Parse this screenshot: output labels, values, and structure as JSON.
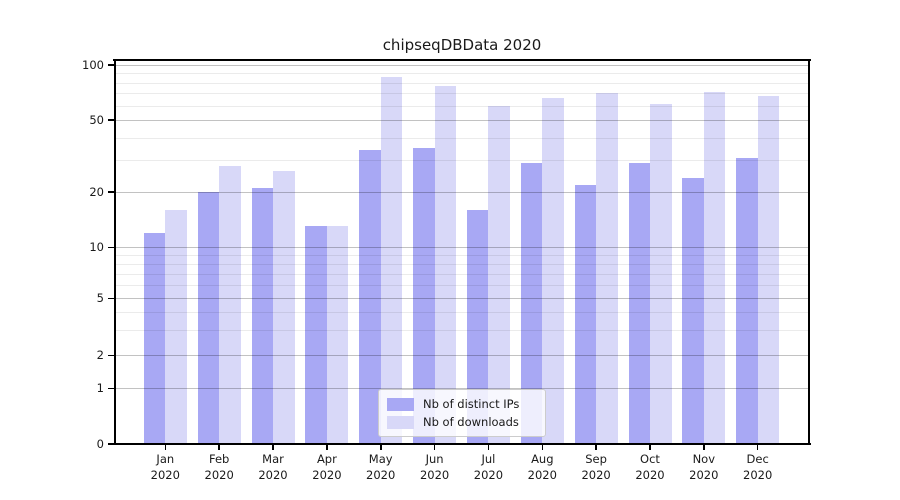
{
  "chart_data": {
    "type": "bar",
    "title": "chipseqDBData 2020",
    "categories": [
      "Jan",
      "Feb",
      "Mar",
      "Apr",
      "May",
      "Jun",
      "Jul",
      "Aug",
      "Sep",
      "Oct",
      "Nov",
      "Dec"
    ],
    "x_tick_sublabel": "2020",
    "series": [
      {
        "name": "Nb of distinct IPs",
        "color": "#a8a8f4",
        "values": [
          12,
          20,
          21,
          13,
          34,
          35,
          16,
          29,
          22,
          29,
          24,
          31
        ]
      },
      {
        "name": "Nb of downloads",
        "color": "#d8d8f8",
        "values": [
          16,
          28,
          26,
          13,
          86,
          77,
          60,
          66,
          70,
          61,
          71,
          68
        ]
      }
    ],
    "y_axis": {
      "ticks": [
        0,
        1,
        2,
        5,
        10,
        20,
        50,
        100
      ],
      "minor_ticks": [
        3,
        4,
        6,
        7,
        8,
        9,
        30,
        40,
        60,
        70,
        80,
        90
      ],
      "scale": "log (1-2-5 ticks), linear below 1",
      "range": [
        0,
        100
      ]
    },
    "legend": {
      "position": "lower center",
      "entries": [
        "Nb of distinct IPs",
        "Nb of downloads"
      ]
    },
    "grid": "horizontal major and minor lines",
    "colors": {
      "major_grid": "rgba(0,0,0,0.24)",
      "minor_grid": "rgba(0,0,0,0.08)",
      "axis": "#000000",
      "text": "#1a1a1a",
      "background": "#ffffff"
    }
  }
}
